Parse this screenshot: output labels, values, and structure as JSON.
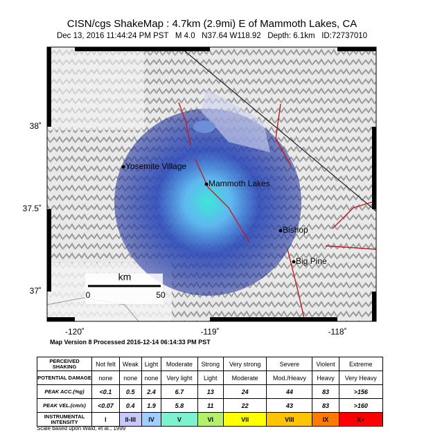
{
  "header": {
    "title": "CISN/cgs ShakeMap : 4.7km (2.9mi) E of Mammoth Lakes, CA",
    "subtitle": "Dec 13, 2016 11:44:24 PM PST   M 4.0   N37.64 W118.92   Depth: 6.1km   ID:72737010"
  },
  "map": {
    "places": [
      "Yosemite Village",
      "Mammoth Lakes",
      "Bishop",
      "Big Pine"
    ],
    "scale": {
      "unit": "km",
      "start": "0",
      "end": "50"
    },
    "lat_labels": [
      "38˚",
      "37.5˚",
      "37˚"
    ],
    "lon_labels": [
      "-120˚",
      "-119˚",
      "-118˚"
    ],
    "version": "Map Version 8 Processed 2016-12-14 06:14:33 PM PST"
  },
  "table": {
    "row_headers": [
      "PERCEIVED SHAKING",
      "POTENTIAL DAMAGE",
      "PEAK ACC.(%g)",
      "PEAK VEL.(cm/s)",
      "INSTRUMENTAL INTENSITY"
    ],
    "rows": [
      [
        "Not felt",
        "Weak",
        "Light",
        "Moderate",
        "Strong",
        "Very strong",
        "Severe",
        "Violent",
        "Extreme"
      ],
      [
        "none",
        "none",
        "none",
        "Very light",
        "Light",
        "Moderate",
        "Mod./Heavy",
        "Heavy",
        "Very Heavy"
      ],
      [
        "<0.1",
        "0.5",
        "2.4",
        "6.7",
        "13",
        "24",
        "44",
        "83",
        ">156"
      ],
      [
        "<0.07",
        "0.4",
        "1.9",
        "5.8",
        "11",
        "22",
        "43",
        "83",
        ">160"
      ],
      [
        "I",
        "II-III",
        "IV",
        "V",
        "VI",
        "VII",
        "VIII",
        "IX",
        "X+"
      ]
    ],
    "intensity_colors": [
      "#ffffff",
      "#c8c8ff",
      "#9ecfff",
      "#7df2d0",
      "#b4f06a",
      "#ffff00",
      "#ffc400",
      "#ff7a00",
      "#ff0000"
    ]
  },
  "footnote": "Scale based upon Wald, et al.; 1999"
}
